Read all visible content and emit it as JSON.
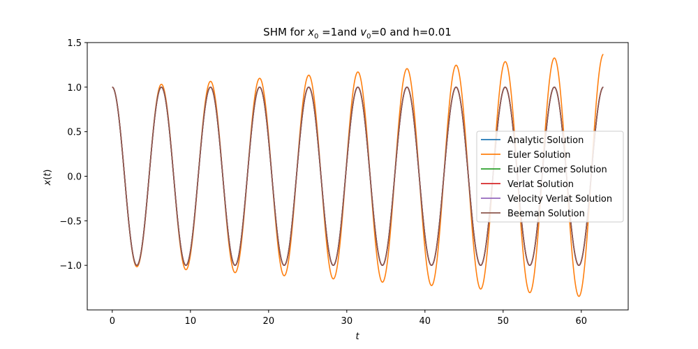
{
  "chart_data": {
    "type": "line",
    "title": "SHM for x_0 =1and v_0=0 and h=0.01",
    "title_parts": {
      "prefix": "SHM for ",
      "x_var": "x",
      "x_sub": "0",
      "mid": " =1and ",
      "v_var": "v",
      "v_sub": "0",
      "suffix": "=0 and h=0.01"
    },
    "xlabel": "t",
    "ylabel": "x(t)",
    "ylabel_parts": {
      "var": "x",
      "open": "(",
      "arg": "t",
      "close": ")"
    },
    "xlim": [
      -3.2,
      66
    ],
    "ylim": [
      -1.5,
      1.5
    ],
    "x_ticks": [
      0,
      10,
      20,
      30,
      40,
      50,
      60
    ],
    "y_ticks": [
      1.5,
      1.0,
      0.5,
      0.0,
      -0.5,
      -1.0
    ],
    "x_tick_labels": [
      "0",
      "10",
      "20",
      "30",
      "40",
      "50",
      "60"
    ],
    "y_tick_labels": [
      "1.5",
      "1.0",
      "0.5",
      "0.0",
      "−0.5",
      "−1.0"
    ],
    "grid": false,
    "legend_position": "center-right",
    "x_range": [
      0,
      62.83
    ],
    "step": 0.01,
    "series": [
      {
        "name": "Analytic Solution",
        "color": "#1f77b4",
        "method": "analytic"
      },
      {
        "name": "Euler Solution",
        "color": "#ff7f0e",
        "method": "euler"
      },
      {
        "name": "Euler Cromer Solution",
        "color": "#2ca02c",
        "method": "euler_cromer"
      },
      {
        "name": "Verlat Solution",
        "color": "#d62728",
        "method": "verlet"
      },
      {
        "name": "Velocity Verlat Solution",
        "color": "#9467bd",
        "method": "velocity_verlet"
      },
      {
        "name": "Beeman Solution",
        "color": "#8c564b",
        "method": "beeman"
      }
    ]
  }
}
